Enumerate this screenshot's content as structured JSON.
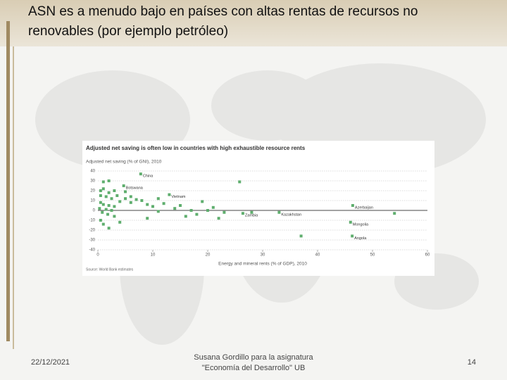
{
  "slide": {
    "title_lines": [
      "ASN es a menudo bajo en países con altas rentas de recursos no",
      "renovables (por ejemplo petróleo)"
    ],
    "date": "22/12/2021",
    "author_lines": [
      "Susana Gordillo para la asignatura",
      "\"Economía del Desarrollo\" UB"
    ],
    "page": "14"
  },
  "chart_data": {
    "type": "scatter",
    "title": "Adjusted net saving is often low in countries with high exhaustible resource rents",
    "y_label": "Adjusted net saving (% of GNI), 2010",
    "x_label": "Energy and mineral rents (% of GDP), 2010",
    "source": "Source: World Bank estimates",
    "color": "#5fae6e",
    "xlim": [
      0,
      60
    ],
    "xticks": [
      0,
      10,
      20,
      30,
      40,
      50,
      60
    ],
    "ylim": [
      -40,
      40
    ],
    "yticks": [
      40,
      30,
      20,
      10,
      0,
      -10,
      -20,
      -30,
      -40
    ],
    "grid": true,
    "x": [
      7.8,
      4.7,
      13,
      46.4,
      26.4,
      33,
      46,
      46.3,
      25.8,
      1,
      2,
      0.5,
      1,
      2,
      3,
      5,
      0.5,
      1.5,
      2.5,
      3.5,
      6,
      7,
      4,
      0.5,
      1,
      2,
      3,
      0.3,
      1.5,
      2.5,
      0.8,
      1.8,
      3,
      0.5,
      1,
      2,
      5,
      6,
      8,
      9,
      10,
      11,
      12,
      14,
      15,
      18,
      17,
      19,
      20,
      21,
      22,
      23,
      37,
      54,
      28,
      16,
      11,
      9,
      4
    ],
    "values": [
      37,
      25,
      16,
      5,
      -3,
      -2,
      -12,
      -26,
      29,
      29,
      30,
      20,
      22,
      18,
      20,
      19,
      15,
      14,
      12,
      15,
      14,
      11,
      9,
      8,
      6,
      5,
      4,
      2,
      1,
      0,
      -2,
      -4,
      -6,
      -10,
      -14,
      -18,
      12,
      8,
      10,
      6,
      4,
      12,
      7,
      2,
      5,
      -4,
      0,
      9,
      0,
      3,
      -8,
      -2,
      -26,
      -3,
      -2,
      -6,
      -1,
      -8,
      -12
    ],
    "point_labels": [
      "China",
      "Botswana",
      "Vietnam",
      "Azerbaijan",
      "Zambia",
      "Kazakhstan",
      "Mongolia",
      "Angola",
      null,
      null,
      null,
      null,
      null,
      null,
      null,
      null,
      null,
      null,
      null,
      null,
      null,
      null,
      null,
      null,
      null,
      null,
      null,
      null,
      null,
      null,
      null,
      null,
      null,
      null,
      null,
      null,
      null,
      null,
      null,
      null,
      null,
      null,
      null,
      null,
      null,
      null,
      null,
      null,
      null,
      null,
      null,
      null,
      null,
      null,
      null,
      null,
      null,
      null,
      null
    ]
  }
}
